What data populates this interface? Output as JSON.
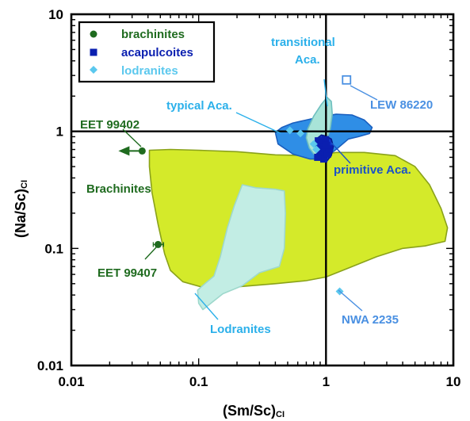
{
  "chart_data": {
    "type": "scatter",
    "xlabel": "(Sm/Sc)",
    "xlabel_sub": "CI",
    "ylabel": "(Na/Sc)",
    "ylabel_sub": "CI",
    "x_scale": "log",
    "y_scale": "log",
    "xlim": [
      0.01,
      10
    ],
    "ylim": [
      0.01,
      10
    ],
    "x_ticks": [
      {
        "value": 0.01,
        "label": "0.01"
      },
      {
        "value": 0.1,
        "label": "0.1"
      },
      {
        "value": 1,
        "label": "1"
      },
      {
        "value": 10,
        "label": "10"
      }
    ],
    "y_ticks": [
      {
        "value": 0.01,
        "label": "0.01"
      },
      {
        "value": 0.1,
        "label": "0.1"
      },
      {
        "value": 1,
        "label": "1"
      },
      {
        "value": 10,
        "label": "10"
      }
    ],
    "reference_lines": {
      "x": 1,
      "y": 1
    },
    "legend_position": "top-left",
    "series": [
      {
        "name": "brachinites",
        "marker": "circle",
        "color": "#1f6b1f",
        "points": [
          {
            "x": 0.036,
            "y": 0.68,
            "upper_limit_x": true
          },
          {
            "x": 0.048,
            "y": 0.108,
            "x_err": [
              0.044,
              0.053
            ]
          }
        ]
      },
      {
        "name": "acapulcoites",
        "marker": "square",
        "color": "#0a1fb0",
        "points": [
          {
            "x": 0.87,
            "y": 0.83
          },
          {
            "x": 0.92,
            "y": 0.79
          },
          {
            "x": 0.95,
            "y": 0.74
          },
          {
            "x": 0.89,
            "y": 0.7
          },
          {
            "x": 0.98,
            "y": 0.66
          },
          {
            "x": 0.9,
            "y": 0.62
          },
          {
            "x": 0.96,
            "y": 0.58
          },
          {
            "x": 1.03,
            "y": 0.64
          },
          {
            "x": 1.06,
            "y": 0.71
          },
          {
            "x": 0.86,
            "y": 0.6
          },
          {
            "x": 0.99,
            "y": 0.85
          },
          {
            "x": 1.01,
            "y": 0.76
          }
        ]
      },
      {
        "name": "lodranites",
        "marker": "diamond",
        "color": "#5bc8ee",
        "points": [
          {
            "x": 0.52,
            "y": 1.02
          },
          {
            "x": 0.63,
            "y": 0.96
          },
          {
            "x": 0.8,
            "y": 0.78
          },
          {
            "x": 0.84,
            "y": 0.7
          },
          {
            "x": 1.28,
            "y": 0.043
          }
        ]
      },
      {
        "name": "LEW 86220",
        "marker": "open-square",
        "color": "#4a90e2",
        "points": [
          {
            "x": 1.45,
            "y": 2.75
          }
        ]
      }
    ],
    "fields": [
      {
        "name": "Brachinites",
        "fill": "#d4ea2a",
        "stroke": "#8aa21a",
        "polygon": [
          [
            0.041,
            0.69
          ],
          [
            0.06,
            0.7
          ],
          [
            0.1,
            0.69
          ],
          [
            0.2,
            0.67
          ],
          [
            0.4,
            0.63
          ],
          [
            0.8,
            0.62
          ],
          [
            1.2,
            0.66
          ],
          [
            2.0,
            0.66
          ],
          [
            3.5,
            0.62
          ],
          [
            5.0,
            0.5
          ],
          [
            6.5,
            0.35
          ],
          [
            8.0,
            0.22
          ],
          [
            9.0,
            0.15
          ],
          [
            8.6,
            0.115
          ],
          [
            6.0,
            0.105
          ],
          [
            4.0,
            0.1
          ],
          [
            2.5,
            0.085
          ],
          [
            1.5,
            0.068
          ],
          [
            1.0,
            0.057
          ],
          [
            0.7,
            0.053
          ],
          [
            0.4,
            0.05
          ],
          [
            0.2,
            0.047
          ],
          [
            0.12,
            0.045
          ],
          [
            0.075,
            0.052
          ],
          [
            0.06,
            0.065
          ],
          [
            0.054,
            0.09
          ],
          [
            0.048,
            0.16
          ],
          [
            0.043,
            0.3
          ],
          [
            0.041,
            0.5
          ]
        ]
      },
      {
        "name": "Lodranites",
        "fill": "#c2ede4",
        "stroke": "#9ed8cc",
        "polygon": [
          [
            0.22,
            0.35
          ],
          [
            0.28,
            0.33
          ],
          [
            0.4,
            0.32
          ],
          [
            0.47,
            0.31
          ],
          [
            0.48,
            0.2
          ],
          [
            0.47,
            0.1
          ],
          [
            0.43,
            0.07
          ],
          [
            0.3,
            0.062
          ],
          [
            0.22,
            0.048
          ],
          [
            0.155,
            0.041
          ],
          [
            0.108,
            0.03
          ],
          [
            0.1,
            0.034
          ],
          [
            0.098,
            0.044
          ],
          [
            0.112,
            0.05
          ],
          [
            0.132,
            0.058
          ],
          [
            0.148,
            0.085
          ],
          [
            0.168,
            0.15
          ],
          [
            0.19,
            0.23
          ]
        ]
      },
      {
        "name": "typical Aca.",
        "fill": "#2f8ee6",
        "stroke": "#1a5fbf",
        "polygon": [
          [
            0.4,
            0.98
          ],
          [
            0.45,
            1.08
          ],
          [
            0.55,
            1.18
          ],
          [
            0.7,
            1.25
          ],
          [
            0.9,
            1.33
          ],
          [
            1.2,
            1.4
          ],
          [
            1.6,
            1.38
          ],
          [
            2.0,
            1.25
          ],
          [
            2.3,
            1.08
          ],
          [
            2.2,
            0.96
          ],
          [
            1.8,
            0.9
          ],
          [
            1.5,
            0.86
          ],
          [
            1.2,
            0.7
          ],
          [
            0.95,
            0.58
          ],
          [
            0.75,
            0.58
          ],
          [
            0.55,
            0.64
          ],
          [
            0.42,
            0.78
          ]
        ]
      },
      {
        "name": "transitional Aca.",
        "fill": "#a8e4d8",
        "stroke": "#6fbfbf",
        "polygon": [
          [
            0.72,
            1.05
          ],
          [
            0.8,
            1.35
          ],
          [
            0.92,
            1.7
          ],
          [
            1.02,
            1.95
          ],
          [
            1.1,
            1.8
          ],
          [
            1.12,
            1.4
          ],
          [
            1.08,
            1.05
          ],
          [
            1.0,
            0.8
          ],
          [
            0.92,
            0.66
          ],
          [
            0.82,
            0.62
          ],
          [
            0.74,
            0.72
          ],
          [
            0.7,
            0.88
          ]
        ]
      },
      {
        "name": "primitive Aca.",
        "fill": "#1033c8",
        "stroke": "#061a8a",
        "polygon": [
          [
            0.84,
            0.86
          ],
          [
            0.92,
            0.93
          ],
          [
            1.0,
            0.91
          ],
          [
            1.1,
            0.86
          ],
          [
            1.14,
            0.74
          ],
          [
            1.1,
            0.62
          ],
          [
            1.02,
            0.56
          ],
          [
            0.94,
            0.56
          ],
          [
            0.86,
            0.6
          ],
          [
            0.83,
            0.72
          ]
        ]
      }
    ],
    "annotations": [
      {
        "text": "transitional",
        "color": "#2bb0ea"
      },
      {
        "text": "Aca.",
        "color": "#2bb0ea"
      },
      {
        "text": "typical Aca.",
        "color": "#2bb0ea"
      },
      {
        "text": "LEW 86220",
        "color": "#4a90e2"
      },
      {
        "text": "primitive Aca.",
        "color": "#1a52c8"
      },
      {
        "text": "EET 99402",
        "color": "#1f6b1f"
      },
      {
        "text": "Brachinites",
        "color": "#1f6b1f"
      },
      {
        "text": "EET 99407",
        "color": "#1f6b1f"
      },
      {
        "text": "Lodranites",
        "color": "#2bb0ea"
      },
      {
        "text": "NWA 2235",
        "color": "#4a90e2"
      }
    ]
  }
}
